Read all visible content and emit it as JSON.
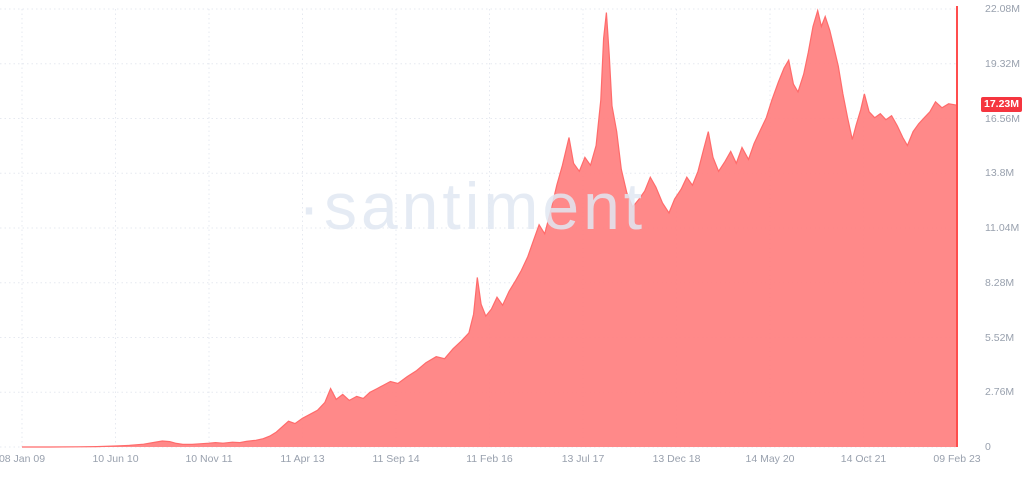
{
  "watermark": "·santiment",
  "colors": {
    "area_fill": "#ff8383",
    "area_stroke": "#ff6b6b",
    "axis_line": "#ff4d4d",
    "badge_bg": "#f5353f",
    "grid": "#e6e9f0",
    "tick_text": "#99a1ae",
    "watermark_text": "#e1e7f2"
  },
  "chart_data": {
    "type": "area",
    "title": "",
    "xlabel": "",
    "ylabel": "",
    "legend": [],
    "grid": "dotted",
    "ylim": [
      0,
      22.08
    ],
    "x_range": [
      "08 Jan 09",
      "09 Feb 23"
    ],
    "current_value": 17.23,
    "current_value_label": "17.23M",
    "x_tick_labels": [
      "08 Jan 09",
      "10 Jun 10",
      "10 Nov 11",
      "11 Apr 13",
      "11 Sep 14",
      "11 Feb 16",
      "13 Jul 17",
      "13 Dec 18",
      "14 May 20",
      "14 Oct 21",
      "09 Feb 23"
    ],
    "y_ticks": [
      {
        "value": 0,
        "label": "0"
      },
      {
        "value": 2.76,
        "label": "2.76M"
      },
      {
        "value": 5.52,
        "label": "5.52M"
      },
      {
        "value": 8.28,
        "label": "8.28M"
      },
      {
        "value": 11.04,
        "label": "11.04M"
      },
      {
        "value": 13.8,
        "label": "13.8M"
      },
      {
        "value": 16.56,
        "label": "16.56M"
      },
      {
        "value": 19.32,
        "label": "19.32M"
      },
      {
        "value": 22.08,
        "label": "22.08M"
      }
    ],
    "series": [
      {
        "name": "value",
        "unit": "M",
        "points": [
          [
            0,
            0
          ],
          [
            0.03,
            0
          ],
          [
            0.06,
            0.01
          ],
          [
            0.08,
            0.02
          ],
          [
            0.1,
            0.05
          ],
          [
            0.115,
            0.08
          ],
          [
            0.13,
            0.14
          ],
          [
            0.14,
            0.22
          ],
          [
            0.15,
            0.3
          ],
          [
            0.158,
            0.27
          ],
          [
            0.165,
            0.18
          ],
          [
            0.172,
            0.13
          ],
          [
            0.182,
            0.13
          ],
          [
            0.19,
            0.16
          ],
          [
            0.2,
            0.19
          ],
          [
            0.207,
            0.22
          ],
          [
            0.215,
            0.19
          ],
          [
            0.225,
            0.24
          ],
          [
            0.233,
            0.22
          ],
          [
            0.24,
            0.28
          ],
          [
            0.25,
            0.34
          ],
          [
            0.258,
            0.42
          ],
          [
            0.265,
            0.55
          ],
          [
            0.272,
            0.75
          ],
          [
            0.279,
            1.05
          ],
          [
            0.285,
            1.3
          ],
          [
            0.292,
            1.18
          ],
          [
            0.3,
            1.45
          ],
          [
            0.308,
            1.65
          ],
          [
            0.316,
            1.85
          ],
          [
            0.324,
            2.25
          ],
          [
            0.33,
            2.95
          ],
          [
            0.336,
            2.4
          ],
          [
            0.343,
            2.65
          ],
          [
            0.35,
            2.35
          ],
          [
            0.358,
            2.55
          ],
          [
            0.365,
            2.45
          ],
          [
            0.372,
            2.75
          ],
          [
            0.38,
            2.95
          ],
          [
            0.386,
            3.1
          ],
          [
            0.394,
            3.3
          ],
          [
            0.402,
            3.2
          ],
          [
            0.412,
            3.55
          ],
          [
            0.422,
            3.85
          ],
          [
            0.432,
            4.25
          ],
          [
            0.443,
            4.55
          ],
          [
            0.452,
            4.45
          ],
          [
            0.461,
            4.95
          ],
          [
            0.47,
            5.35
          ],
          [
            0.478,
            5.75
          ],
          [
            0.483,
            6.7
          ],
          [
            0.487,
            8.55
          ],
          [
            0.491,
            7.2
          ],
          [
            0.496,
            6.6
          ],
          [
            0.502,
            6.95
          ],
          [
            0.508,
            7.55
          ],
          [
            0.514,
            7.15
          ],
          [
            0.521,
            7.85
          ],
          [
            0.528,
            8.4
          ],
          [
            0.534,
            8.9
          ],
          [
            0.541,
            9.6
          ],
          [
            0.547,
            10.4
          ],
          [
            0.553,
            11.2
          ],
          [
            0.559,
            10.75
          ],
          [
            0.566,
            12.0
          ],
          [
            0.572,
            13.2
          ],
          [
            0.578,
            14.2
          ],
          [
            0.585,
            15.6
          ],
          [
            0.59,
            14.3
          ],
          [
            0.596,
            13.9
          ],
          [
            0.602,
            14.6
          ],
          [
            0.608,
            14.2
          ],
          [
            0.614,
            15.2
          ],
          [
            0.619,
            17.5
          ],
          [
            0.622,
            20.6
          ],
          [
            0.625,
            21.9
          ],
          [
            0.628,
            19.8
          ],
          [
            0.631,
            17.2
          ],
          [
            0.636,
            15.9
          ],
          [
            0.641,
            14.0
          ],
          [
            0.647,
            12.8
          ],
          [
            0.653,
            12.1
          ],
          [
            0.66,
            12.5
          ],
          [
            0.666,
            12.9
          ],
          [
            0.672,
            13.6
          ],
          [
            0.678,
            13.1
          ],
          [
            0.685,
            12.3
          ],
          [
            0.692,
            11.8
          ],
          [
            0.698,
            12.5
          ],
          [
            0.705,
            13.0
          ],
          [
            0.711,
            13.6
          ],
          [
            0.717,
            13.2
          ],
          [
            0.723,
            13.9
          ],
          [
            0.729,
            15.0
          ],
          [
            0.734,
            15.9
          ],
          [
            0.739,
            14.6
          ],
          [
            0.745,
            13.9
          ],
          [
            0.752,
            14.4
          ],
          [
            0.758,
            14.9
          ],
          [
            0.764,
            14.3
          ],
          [
            0.77,
            15.1
          ],
          [
            0.777,
            14.5
          ],
          [
            0.783,
            15.3
          ],
          [
            0.79,
            16.0
          ],
          [
            0.796,
            16.6
          ],
          [
            0.802,
            17.5
          ],
          [
            0.809,
            18.4
          ],
          [
            0.815,
            19.1
          ],
          [
            0.82,
            19.5
          ],
          [
            0.825,
            18.3
          ],
          [
            0.83,
            17.9
          ],
          [
            0.836,
            18.8
          ],
          [
            0.841,
            19.9
          ],
          [
            0.846,
            21.2
          ],
          [
            0.851,
            22.0
          ],
          [
            0.855,
            21.2
          ],
          [
            0.859,
            21.7
          ],
          [
            0.864,
            21.0
          ],
          [
            0.868,
            20.2
          ],
          [
            0.873,
            19.2
          ],
          [
            0.878,
            17.8
          ],
          [
            0.883,
            16.6
          ],
          [
            0.888,
            15.5
          ],
          [
            0.892,
            16.2
          ],
          [
            0.897,
            17.0
          ],
          [
            0.901,
            17.8
          ],
          [
            0.906,
            16.9
          ],
          [
            0.912,
            16.6
          ],
          [
            0.918,
            16.8
          ],
          [
            0.924,
            16.5
          ],
          [
            0.93,
            16.7
          ],
          [
            0.936,
            16.2
          ],
          [
            0.942,
            15.6
          ],
          [
            0.947,
            15.2
          ],
          [
            0.953,
            15.9
          ],
          [
            0.959,
            16.3
          ],
          [
            0.965,
            16.6
          ],
          [
            0.971,
            16.9
          ],
          [
            0.977,
            17.4
          ],
          [
            0.984,
            17.1
          ],
          [
            0.991,
            17.3
          ],
          [
            1.0,
            17.23
          ]
        ]
      }
    ]
  }
}
